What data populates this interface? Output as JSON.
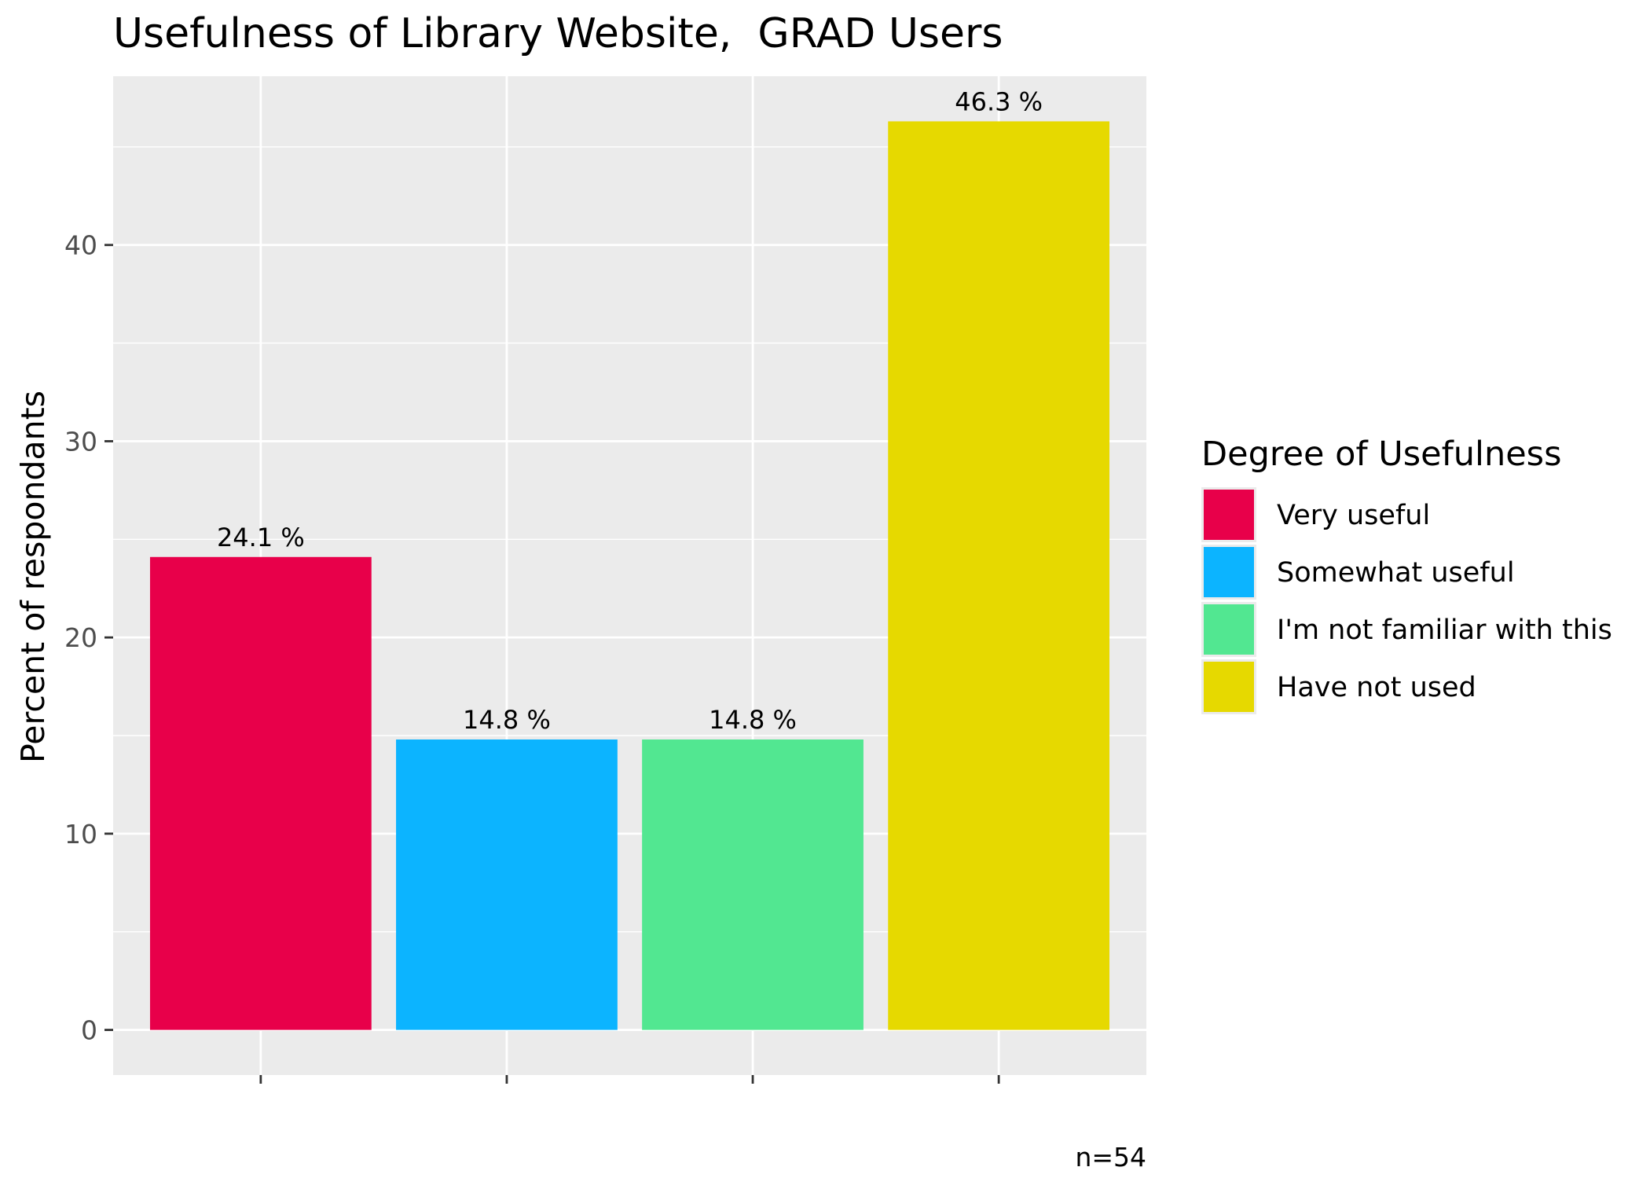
{
  "chart_data": {
    "type": "bar",
    "title": "Usefulness of Library Website,  GRAD Users",
    "xlabel": "",
    "ylabel": "Percent of respondants",
    "caption": "n=54",
    "categories": [
      "Very useful",
      "Somewhat useful",
      "I'm not familiar with this",
      "Have not used"
    ],
    "values": [
      24.1,
      14.8,
      14.8,
      46.3
    ],
    "data_labels": [
      "24.1 %",
      "14.8 %",
      "14.8 %",
      "46.3 %"
    ],
    "colors": [
      "#e8004a",
      "#0cb4ff",
      "#52e791",
      "#e6d900"
    ],
    "ylim": [
      -2.3,
      48.6
    ],
    "yticks": [
      0,
      10,
      20,
      30,
      40
    ],
    "ytick_labels": [
      "0",
      "10",
      "20",
      "30",
      "40"
    ],
    "grid": true,
    "panel_background": "#ebebeb",
    "grid_color": "#ffffff",
    "legend": {
      "title": "Degree of Usefulness",
      "position": "right",
      "entries": [
        "Very useful",
        "Somewhat useful",
        "I'm not familiar with this",
        "Have not used"
      ]
    }
  }
}
